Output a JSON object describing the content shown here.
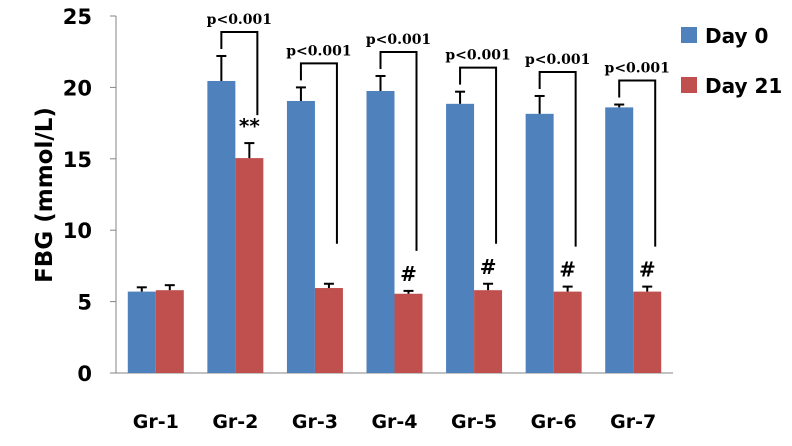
{
  "chart_data": {
    "type": "bar",
    "title": "",
    "xlabel": "",
    "ylabel": "FBG (mmol/L)",
    "ylim": [
      0,
      25
    ],
    "yticks": [
      0,
      5,
      10,
      15,
      20,
      25
    ],
    "grid": false,
    "legend_position": "top-right",
    "categories": [
      "Gr-1",
      "Gr-2",
      "Gr-3",
      "Gr-4",
      "Gr-5",
      "Gr-6",
      "Gr-7"
    ],
    "series": [
      {
        "name": "Day 0",
        "color": "#4F81BD",
        "values": [
          5.7,
          20.45,
          19.05,
          19.75,
          18.85,
          18.15,
          18.6
        ],
        "errors": [
          0.3,
          1.75,
          0.95,
          1.05,
          0.85,
          1.25,
          0.2
        ]
      },
      {
        "name": "Day 21",
        "color": "#C0504D",
        "values": [
          5.8,
          15.05,
          5.95,
          5.55,
          5.8,
          5.7,
          5.7
        ],
        "errors": [
          0.35,
          1.05,
          0.3,
          0.2,
          0.45,
          0.35,
          0.35
        ]
      }
    ],
    "annotations": [
      {
        "group": "Gr-2",
        "label": "p<0.001",
        "type": "bracket"
      },
      {
        "group": "Gr-3",
        "label": "p<0.001",
        "type": "bracket"
      },
      {
        "group": "Gr-4",
        "label": "p<0.001",
        "type": "bracket"
      },
      {
        "group": "Gr-5",
        "label": "p<0.001",
        "type": "bracket"
      },
      {
        "group": "Gr-6",
        "label": "p<0.001",
        "type": "bracket"
      },
      {
        "group": "Gr-7",
        "label": "p<0.001",
        "type": "bracket"
      },
      {
        "group": "Gr-2",
        "series": "Day 21",
        "label": "**",
        "type": "marker"
      },
      {
        "group": "Gr-4",
        "series": "Day 21",
        "label": "#",
        "type": "marker"
      },
      {
        "group": "Gr-5",
        "series": "Day 21",
        "label": "#",
        "type": "marker"
      },
      {
        "group": "Gr-6",
        "series": "Day 21",
        "label": "#",
        "type": "marker"
      },
      {
        "group": "Gr-7",
        "series": "Day 21",
        "label": "#",
        "type": "marker"
      }
    ]
  }
}
